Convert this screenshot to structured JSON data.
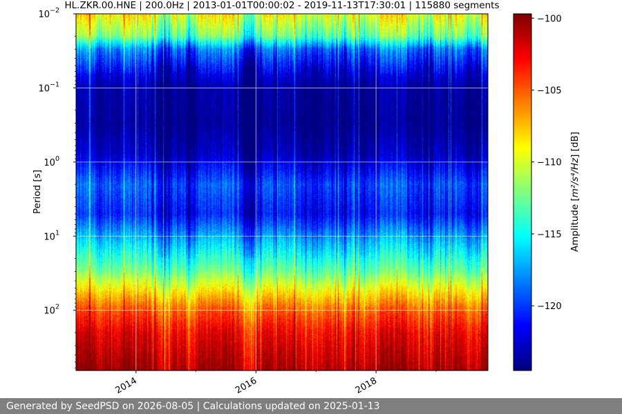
{
  "chart_data": {
    "type": "heatmap",
    "title": "HL.ZKR.00.HNE | 200.0Hz | 2013-01-01T00:00:02 - 2019-11-13T17:30:01 | 115880 segments",
    "xlabel": "",
    "ylabel": "Period [s]",
    "xlim": [
      "2013-01-01",
      "2019-11-13"
    ],
    "x_ticks": [
      {
        "value": "2014-01-01",
        "label": "2014"
      },
      {
        "value": "2016-01-01",
        "label": "2016"
      },
      {
        "value": "2018-01-01",
        "label": "2018"
      }
    ],
    "y_scale": "log",
    "y_inverted": true,
    "ylim": [
      0.01,
      650
    ],
    "y_ticks": [
      {
        "value": 0.01,
        "base": "10",
        "exp": "−2"
      },
      {
        "value": 0.1,
        "base": "10",
        "exp": "−1"
      },
      {
        "value": 1,
        "base": "10",
        "exp": "0"
      },
      {
        "value": 10,
        "base": "10",
        "exp": "1"
      },
      {
        "value": 100,
        "base": "10",
        "exp": "2"
      }
    ],
    "grid": true,
    "colormap": "jet",
    "colorbar": {
      "label_prefix": "Amplitude [",
      "label_unit": "m²/s⁴/Hz",
      "label_suffix": "] [dB]",
      "vmin": -124.5,
      "vmax": -99.7,
      "ticks": [
        {
          "value": -100,
          "label": "−100"
        },
        {
          "value": -105,
          "label": "−105"
        },
        {
          "value": -110,
          "label": "−110"
        },
        {
          "value": -115,
          "label": "−115"
        },
        {
          "value": -120,
          "label": "−120"
        }
      ]
    },
    "amplitude_profile": [
      {
        "period": 0.01,
        "db": -109
      },
      {
        "period": 0.02,
        "db": -112.5
      },
      {
        "period": 0.03,
        "db": -118.5
      },
      {
        "period": 0.06,
        "db": -122
      },
      {
        "period": 0.1,
        "db": -123.8
      },
      {
        "period": 0.3,
        "db": -124.3
      },
      {
        "period": 0.8,
        "db": -123
      },
      {
        "period": 2,
        "db": -119.5
      },
      {
        "period": 5,
        "db": -121
      },
      {
        "period": 10,
        "db": -117.5
      },
      {
        "period": 30,
        "db": -112.5
      },
      {
        "period": 60,
        "db": -108
      },
      {
        "period": 100,
        "db": -105
      },
      {
        "period": 200,
        "db": -102.5
      },
      {
        "period": 650,
        "db": -100.5
      }
    ]
  },
  "footer": {
    "text": "Generated by SeedPSD on 2026-08-05 | Calculations updated on 2025-01-13"
  }
}
